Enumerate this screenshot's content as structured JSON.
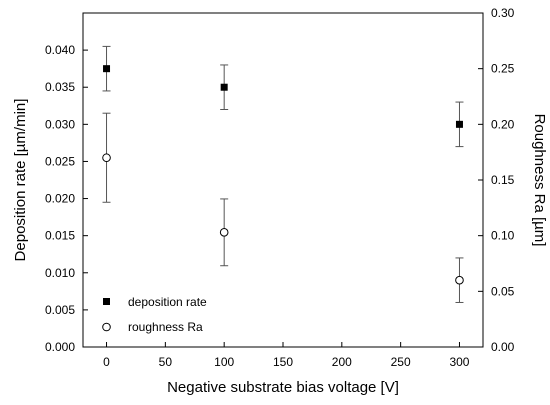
{
  "chart_data": {
    "type": "scatter",
    "xlabel": "Negative substrate bias voltage [V]",
    "ylabel": "Deposition rate [µm/min]",
    "y2label": "Roughness Ra [µm]",
    "xlim": [
      -20,
      320
    ],
    "ylim": [
      0,
      0.045
    ],
    "y2lim": [
      0,
      0.3
    ],
    "xticks": [
      "0",
      "50",
      "100",
      "150",
      "200",
      "250",
      "300"
    ],
    "yticks": [
      "0.000",
      "0.005",
      "0.010",
      "0.015",
      "0.020",
      "0.025",
      "0.030",
      "0.035",
      "0.040"
    ],
    "y2ticks": [
      "0.00",
      "0.05",
      "0.10",
      "0.15",
      "0.20",
      "0.25",
      "0.30"
    ],
    "grid": false,
    "legend_position": "bottom-left",
    "series": [
      {
        "name": "deposition rate",
        "axis": "left",
        "marker": "filled-square",
        "color": "#000000",
        "x": [
          0,
          100,
          300
        ],
        "y": [
          0.0375,
          0.035,
          0.03
        ],
        "err": [
          0.003,
          0.003,
          0.003
        ]
      },
      {
        "name": "roughness Ra",
        "axis": "right",
        "marker": "open-circle",
        "color": "#000000",
        "x": [
          0,
          100,
          300
        ],
        "y": [
          0.17,
          0.103,
          0.06
        ],
        "err": [
          0.04,
          0.03,
          0.02
        ]
      }
    ]
  }
}
